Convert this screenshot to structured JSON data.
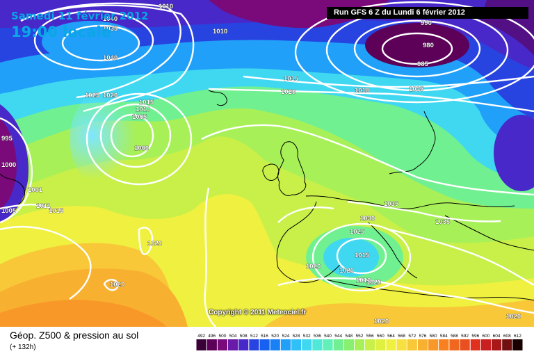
{
  "header": {
    "date_text": "Samedi 11 février 2012",
    "time_text": "19:00 locale",
    "run_text": "Run GFS 6 Z du Lundi 6 février 2012"
  },
  "footer": {
    "title": "Géop. Z500 & pression au sol",
    "forecast_hour": "(+ 132h)",
    "copyright": "Copyright © 2011 Meteociel.fr"
  },
  "legend": {
    "values": [
      "492",
      "496",
      "500",
      "504",
      "508",
      "512",
      "516",
      "520",
      "524",
      "528",
      "532",
      "536",
      "540",
      "544",
      "548",
      "552",
      "556",
      "560",
      "564",
      "568",
      "572",
      "576",
      "580",
      "584",
      "588",
      "592",
      "596",
      "600",
      "604",
      "608",
      "612"
    ],
    "colors": [
      "#3a0038",
      "#5c0058",
      "#7a0a7a",
      "#6a1aa8",
      "#4828c8",
      "#2844e0",
      "#1860f0",
      "#1a80f6",
      "#20a0f8",
      "#30c0f8",
      "#40d8f0",
      "#50e8d8",
      "#60f0b8",
      "#70f090",
      "#88f070",
      "#a8f058",
      "#c8f048",
      "#e0f040",
      "#f0f040",
      "#f8e040",
      "#f8c838",
      "#f8b030",
      "#f89828",
      "#f88020",
      "#f06820",
      "#e85020",
      "#e03020",
      "#c82020",
      "#a81818",
      "#701010",
      "#180000"
    ]
  },
  "isobars": [
    "1040",
    "1035",
    "1010",
    "1010",
    "1040",
    "1025",
    "1020",
    "1015",
    "1010",
    "1005",
    "1000",
    "1015",
    "1020",
    "1010",
    "1005",
    "990",
    "980",
    "985",
    "1000",
    "1001",
    "1005",
    "1011",
    "1015",
    "1035",
    "1030",
    "1025",
    "1035",
    "1015",
    "1020",
    "1020",
    "1020",
    "1010",
    "1020",
    "1020",
    "1020",
    "1020",
    "995"
  ]
}
